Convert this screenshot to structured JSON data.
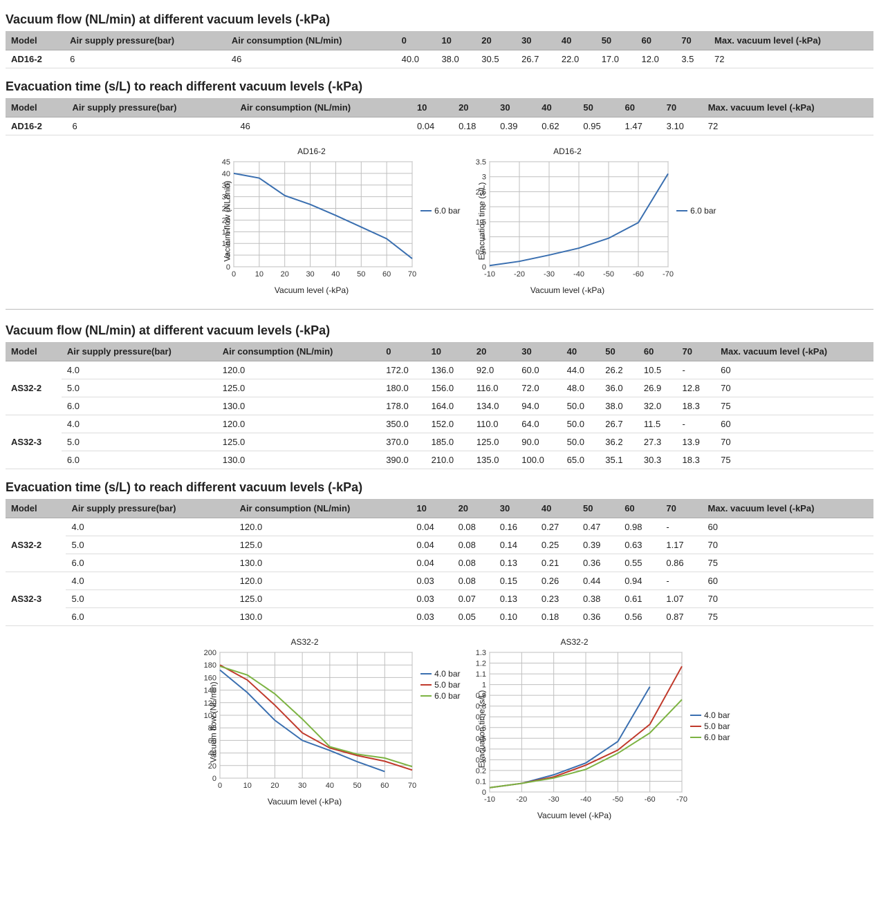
{
  "colors": {
    "blue": "#3a6fb0",
    "red": "#c0392b",
    "green": "#7cb342",
    "grid": "#bfbfbf",
    "border": "#888888"
  },
  "section1": {
    "title": "Vacuum flow (NL/min) at different vacuum levels (-kPa)",
    "headers": [
      "Model",
      "Air supply pressure(bar)",
      "Air consumption (NL/min)",
      "0",
      "10",
      "20",
      "30",
      "40",
      "50",
      "60",
      "70",
      "Max. vacuum level (-kPa)"
    ],
    "rows": [
      {
        "model": "AD16-2",
        "vals": [
          "6",
          "46",
          "40.0",
          "38.0",
          "30.5",
          "26.7",
          "22.0",
          "17.0",
          "12.0",
          "3.5",
          "72"
        ]
      }
    ]
  },
  "section2": {
    "title": "Evacuation time (s/L) to reach different vacuum levels (-kPa)",
    "headers": [
      "Model",
      "Air supply pressure(bar)",
      "Air consumption (NL/min)",
      "10",
      "20",
      "30",
      "40",
      "50",
      "60",
      "70",
      "Max. vacuum level (-kPa)"
    ],
    "rows": [
      {
        "model": "AD16-2",
        "vals": [
          "6",
          "46",
          "0.04",
          "0.18",
          "0.39",
          "0.62",
          "0.95",
          "1.47",
          "3.10",
          "72"
        ]
      }
    ]
  },
  "chart_ad16_flow": {
    "title": "AD16-2",
    "ylabel": "Vacuum flow (NL/min)",
    "xlabel": "Vacuum level (-kPa)",
    "x": [
      0,
      10,
      20,
      30,
      40,
      50,
      60,
      70
    ],
    "xticks": [
      0,
      10,
      20,
      30,
      40,
      50,
      60,
      70
    ],
    "yticks": [
      0,
      5,
      10,
      15,
      20,
      25,
      30,
      35,
      40,
      45
    ],
    "ylim": [
      0,
      45
    ],
    "series": [
      {
        "name": "6.0 bar",
        "color": "#3a6fb0",
        "y": [
          40.0,
          38.0,
          30.5,
          26.7,
          22.0,
          17.0,
          12.0,
          3.5
        ]
      }
    ]
  },
  "chart_ad16_evac": {
    "title": "AD16-2",
    "ylabel": "Evacuation time (s/L)",
    "xlabel": "Vacuum level (-kPa)",
    "x": [
      10,
      20,
      30,
      40,
      50,
      60,
      70
    ],
    "xticks_labels": [
      "-10",
      "-20",
      "-30",
      "-40",
      "-50",
      "-60",
      "-70"
    ],
    "yticks": [
      0,
      0.5,
      1,
      1.5,
      2,
      2.5,
      3,
      3.5
    ],
    "ylim": [
      0,
      3.5
    ],
    "series": [
      {
        "name": "6.0 bar",
        "color": "#3a6fb0",
        "y": [
          0.04,
          0.18,
          0.39,
          0.62,
          0.95,
          1.47,
          3.1
        ]
      }
    ]
  },
  "section3": {
    "title": "Vacuum flow (NL/min) at different vacuum levels (-kPa)",
    "headers": [
      "Model",
      "Air supply pressure(bar)",
      "Air consumption (NL/min)",
      "0",
      "10",
      "20",
      "30",
      "40",
      "50",
      "60",
      "70",
      "Max. vacuum level (-kPa)"
    ],
    "groups": [
      {
        "model": "AS32-2",
        "rows": [
          [
            "4.0",
            "120.0",
            "172.0",
            "136.0",
            "92.0",
            "60.0",
            "44.0",
            "26.2",
            "10.5",
            "-",
            "60"
          ],
          [
            "5.0",
            "125.0",
            "180.0",
            "156.0",
            "116.0",
            "72.0",
            "48.0",
            "36.0",
            "26.9",
            "12.8",
            "70"
          ],
          [
            "6.0",
            "130.0",
            "178.0",
            "164.0",
            "134.0",
            "94.0",
            "50.0",
            "38.0",
            "32.0",
            "18.3",
            "75"
          ]
        ]
      },
      {
        "model": "AS32-3",
        "rows": [
          [
            "4.0",
            "120.0",
            "350.0",
            "152.0",
            "110.0",
            "64.0",
            "50.0",
            "26.7",
            "11.5",
            "-",
            "60"
          ],
          [
            "5.0",
            "125.0",
            "370.0",
            "185.0",
            "125.0",
            "90.0",
            "50.0",
            "36.2",
            "27.3",
            "13.9",
            "70"
          ],
          [
            "6.0",
            "130.0",
            "390.0",
            "210.0",
            "135.0",
            "100.0",
            "65.0",
            "35.1",
            "30.3",
            "18.3",
            "75"
          ]
        ]
      }
    ]
  },
  "section4": {
    "title": "Evacuation time (s/L) to reach different vacuum levels (-kPa)",
    "headers": [
      "Model",
      "Air supply pressure(bar)",
      "Air consumption (NL/min)",
      "10",
      "20",
      "30",
      "40",
      "50",
      "60",
      "70",
      "Max. vacuum level (-kPa)"
    ],
    "groups": [
      {
        "model": "AS32-2",
        "rows": [
          [
            "4.0",
            "120.0",
            "0.04",
            "0.08",
            "0.16",
            "0.27",
            "0.47",
            "0.98",
            "-",
            "60"
          ],
          [
            "5.0",
            "125.0",
            "0.04",
            "0.08",
            "0.14",
            "0.25",
            "0.39",
            "0.63",
            "1.17",
            "70"
          ],
          [
            "6.0",
            "130.0",
            "0.04",
            "0.08",
            "0.13",
            "0.21",
            "0.36",
            "0.55",
            "0.86",
            "75"
          ]
        ]
      },
      {
        "model": "AS32-3",
        "rows": [
          [
            "4.0",
            "120.0",
            "0.03",
            "0.08",
            "0.15",
            "0.26",
            "0.44",
            "0.94",
            "-",
            "60"
          ],
          [
            "5.0",
            "125.0",
            "0.03",
            "0.07",
            "0.13",
            "0.23",
            "0.38",
            "0.61",
            "1.07",
            "70"
          ],
          [
            "6.0",
            "130.0",
            "0.03",
            "0.05",
            "0.10",
            "0.18",
            "0.36",
            "0.56",
            "0.87",
            "75"
          ]
        ]
      }
    ]
  },
  "chart_as32_flow": {
    "title": "AS32-2",
    "ylabel": "Vacuum flow (NL/min)",
    "xlabel": "Vacuum level (-kPa)",
    "x": [
      0,
      10,
      20,
      30,
      40,
      50,
      60,
      70
    ],
    "xticks": [
      0,
      10,
      20,
      30,
      40,
      50,
      60,
      70
    ],
    "yticks": [
      0,
      20,
      40,
      60,
      80,
      100,
      120,
      140,
      160,
      180,
      200
    ],
    "ylim": [
      0,
      200
    ],
    "series": [
      {
        "name": "4.0 bar",
        "color": "#3a6fb0",
        "y": [
          172.0,
          136.0,
          92.0,
          60.0,
          44.0,
          26.2,
          10.5,
          null
        ]
      },
      {
        "name": "5.0 bar",
        "color": "#c0392b",
        "y": [
          180.0,
          156.0,
          116.0,
          72.0,
          48.0,
          36.0,
          26.9,
          12.8
        ]
      },
      {
        "name": "6.0 bar",
        "color": "#7cb342",
        "y": [
          178.0,
          164.0,
          134.0,
          94.0,
          50.0,
          38.0,
          32.0,
          18.3
        ]
      }
    ]
  },
  "chart_as32_evac": {
    "title": "AS32-2",
    "ylabel": "Evacuation time (s/L)",
    "xlabel": "Vacuum level (-kPa)",
    "x": [
      10,
      20,
      30,
      40,
      50,
      60,
      70
    ],
    "xticks_labels": [
      "-10",
      "-20",
      "-30",
      "-40",
      "-50",
      "-60",
      "-70"
    ],
    "yticks": [
      0,
      0.1,
      0.2,
      0.3,
      0.4,
      0.5,
      0.6,
      0.7,
      0.8,
      0.9,
      1.0,
      1.1,
      1.2,
      1.3
    ],
    "ylim": [
      0,
      1.3
    ],
    "series": [
      {
        "name": "4.0 bar",
        "color": "#3a6fb0",
        "y": [
          0.04,
          0.08,
          0.16,
          0.27,
          0.47,
          0.98,
          null
        ]
      },
      {
        "name": "5.0 bar",
        "color": "#c0392b",
        "y": [
          0.04,
          0.08,
          0.14,
          0.25,
          0.39,
          0.63,
          1.17
        ]
      },
      {
        "name": "6.0 bar",
        "color": "#7cb342",
        "y": [
          0.04,
          0.08,
          0.13,
          0.21,
          0.36,
          0.55,
          0.86
        ]
      }
    ]
  },
  "labels": {
    "legend_pressure": [
      "4.0 bar",
      "5.0 bar",
      "6.0 bar"
    ]
  }
}
